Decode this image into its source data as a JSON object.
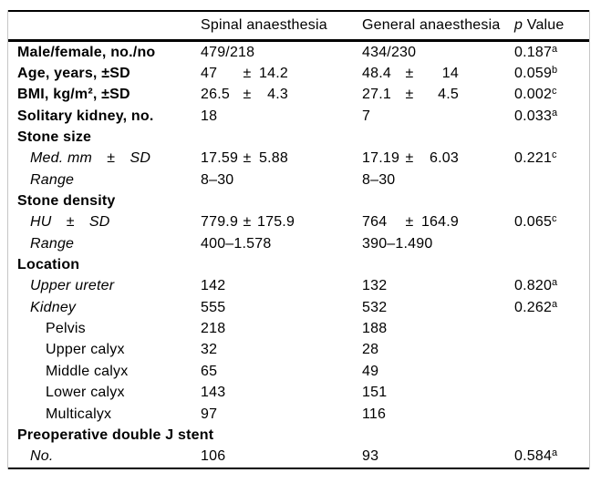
{
  "table": {
    "pm_symbol": "±",
    "header": {
      "spinal": "Spinal anaesthesia",
      "general": "General anaesthesia",
      "p_italic": "p",
      "p_rest": " Value"
    },
    "rows": [
      {
        "label": "Male/female, no./no",
        "style": "bold",
        "indent": 0,
        "spinal": {
          "text": "479/218"
        },
        "general": {
          "text": "434/230"
        },
        "p": "0.187",
        "p_sup": "a"
      },
      {
        "label": "Age, years, ±SD",
        "style": "bold",
        "indent": 0,
        "spinal": {
          "mean": "47",
          "sd": "14.2"
        },
        "general": {
          "mean": "48.4",
          "sd": "14"
        },
        "p": "0.059",
        "p_sup": "b"
      },
      {
        "label": "BMI, kg/m², ±SD",
        "style": "bold",
        "indent": 0,
        "spinal": {
          "mean": "26.5",
          "sd": "4.3"
        },
        "general": {
          "mean": "27.1",
          "sd": "4.5"
        },
        "p": "0.002",
        "p_sup": "c"
      },
      {
        "label": "Solitary kidney, no.",
        "style": "bold",
        "indent": 0,
        "spinal": {
          "text": "18"
        },
        "general": {
          "text": "7"
        },
        "p": "0.033",
        "p_sup": "a"
      },
      {
        "label": "Stone size",
        "style": "bold",
        "indent": 0
      },
      {
        "label": "Med. mm ± SD",
        "style": "italic",
        "indent": 1,
        "spinal": {
          "mean": "17.59",
          "sd": "5.88"
        },
        "general": {
          "mean": "17.19",
          "sd": "6.03"
        },
        "p": "0.221",
        "p_sup": "c"
      },
      {
        "label": "Range",
        "style": "italic",
        "indent": 1,
        "spinal": {
          "text": "8–30"
        },
        "general": {
          "text": "8–30"
        }
      },
      {
        "label": "Stone density",
        "style": "bold",
        "indent": 0
      },
      {
        "label": "HU ± SD",
        "style": "italic",
        "indent": 1,
        "spinal": {
          "mean": "779.9",
          "sd": "175.9"
        },
        "general": {
          "mean": "764",
          "sd": "164.9"
        },
        "p": "0.065",
        "p_sup": "c"
      },
      {
        "label": "Range",
        "style": "italic",
        "indent": 1,
        "spinal": {
          "text": "400–1.578"
        },
        "general": {
          "text": "390–1.490"
        }
      },
      {
        "label": "Location",
        "style": "bold",
        "indent": 0
      },
      {
        "label": "Upper ureter",
        "style": "italic",
        "indent": 1,
        "spinal": {
          "text": "142"
        },
        "general": {
          "text": "132"
        },
        "p": "0.820",
        "p_sup": "a"
      },
      {
        "label": "Kidney",
        "style": "italic",
        "indent": 1,
        "spinal": {
          "text": "555"
        },
        "general": {
          "text": "532"
        },
        "p": "0.262",
        "p_sup": "a"
      },
      {
        "label": "Pelvis",
        "style": "normal",
        "indent": 2,
        "spinal": {
          "text": "218"
        },
        "general": {
          "text": "188"
        }
      },
      {
        "label": "Upper calyx",
        "style": "normal",
        "indent": 2,
        "spinal": {
          "text": "32"
        },
        "general": {
          "text": "28"
        }
      },
      {
        "label": "Middle calyx",
        "style": "normal",
        "indent": 2,
        "spinal": {
          "text": "65"
        },
        "general": {
          "text": "49"
        }
      },
      {
        "label": "Lower calyx",
        "style": "normal",
        "indent": 2,
        "spinal": {
          "text": "143"
        },
        "general": {
          "text": "151"
        }
      },
      {
        "label": "Multicalyx",
        "style": "normal",
        "indent": 2,
        "spinal": {
          "text": "97"
        },
        "general": {
          "text": "116"
        }
      },
      {
        "label": "Preoperative double J stent",
        "style": "bold",
        "indent": 0
      },
      {
        "label": "No.",
        "style": "italic",
        "indent": 1,
        "spinal": {
          "text": "106"
        },
        "general": {
          "text": "93"
        },
        "p": "0.584",
        "p_sup": "a"
      }
    ]
  }
}
